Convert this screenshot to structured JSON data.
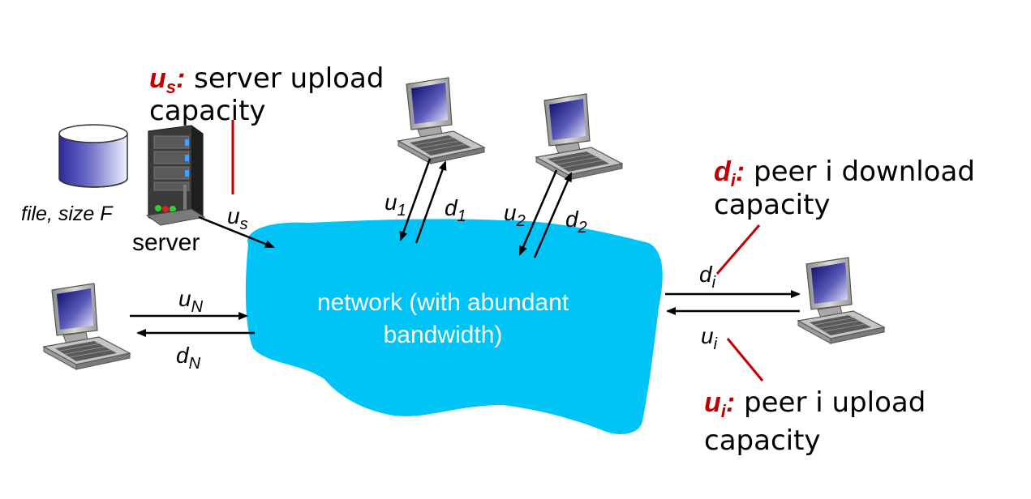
{
  "labels": {
    "file": "file, size F",
    "server": "server",
    "network_line1": "network (with abundant",
    "network_line2": "bandwidth)",
    "u_s": "u",
    "u_s_sub": "s",
    "u_1": "u",
    "u_1_sub": "1",
    "d_1": "d",
    "d_1_sub": "1",
    "u_2": "u",
    "u_2_sub": "2",
    "d_2": "d",
    "d_2_sub": "2",
    "u_N": "u",
    "u_N_sub": "N",
    "d_N": "d",
    "d_N_sub": "N",
    "d_i": "d",
    "d_i_sub": "i",
    "u_i": "u",
    "u_i_sub": "i"
  },
  "callouts": {
    "server_upload": {
      "sym": "u",
      "sub": "s",
      "colon": ":",
      "text": " server upload",
      "line2": "capacity"
    },
    "peer_download": {
      "sym": "d",
      "sub": "i",
      "colon": ":",
      "text": " peer i download",
      "line2": "capacity"
    },
    "peer_upload": {
      "sym": "u",
      "sub": "i",
      "colon": ":",
      "text": " peer i upload",
      "line2": "capacity"
    }
  },
  "colors": {
    "network": "#00c4f5",
    "callout": "#c00000",
    "arrow": "#000000"
  }
}
